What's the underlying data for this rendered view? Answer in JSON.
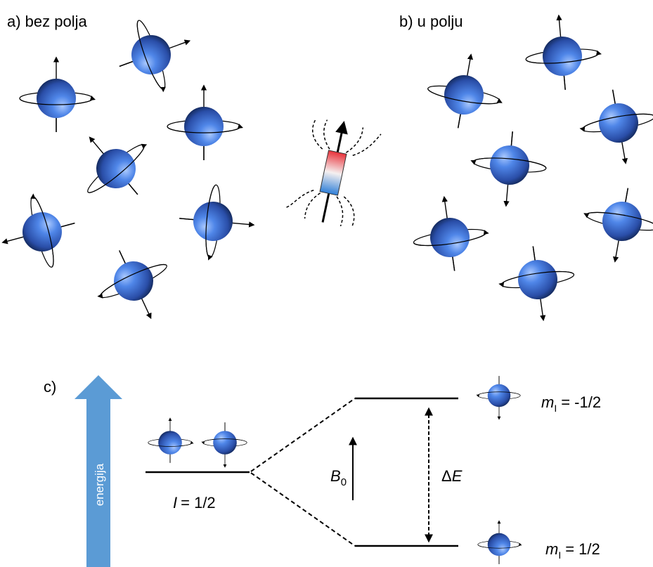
{
  "panels": {
    "a": "a) bez polja",
    "b": "b) u polju",
    "c": "c)"
  },
  "energy_axis": "energija",
  "ground_level": {
    "symbol": "I",
    "value": "= 1/2"
  },
  "field": {
    "symbol": "B",
    "subscript": "0"
  },
  "splitting": {
    "delta": "Δ",
    "symbol": "E"
  },
  "levels": [
    {
      "symbol": "m",
      "subscript": "I",
      "value": "= -1/2"
    },
    {
      "symbol": "m",
      "subscript": "I",
      "value": "= 1/2"
    }
  ]
}
